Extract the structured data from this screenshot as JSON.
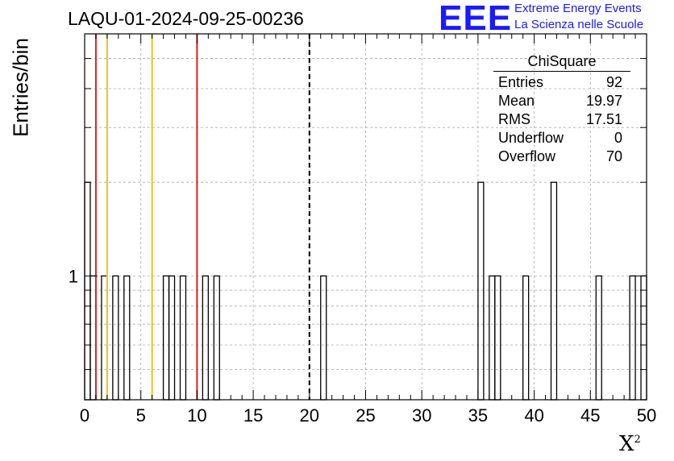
{
  "header": {
    "title": "LAQU-01-2024-09-25-00236",
    "logo_text": "EEE",
    "logo_line1": "Extreme Energy Events",
    "logo_line2": "La Scienza nelle Scuole"
  },
  "stats": {
    "name": "ChiSquare",
    "rows": [
      {
        "label": "Entries",
        "value": "92"
      },
      {
        "label": "Mean",
        "value": "19.97"
      },
      {
        "label": "RMS",
        "value": "17.51"
      },
      {
        "label": "Underflow",
        "value": "0"
      },
      {
        "label": "Overflow",
        "value": "70"
      }
    ]
  },
  "chart_data": {
    "type": "bar",
    "title": "LAQU-01-2024-09-25-00236",
    "xlabel": "X",
    "xlabel_superscript": "2",
    "ylabel": "Entries/bin",
    "xlim": [
      0,
      50
    ],
    "y_scale": "log",
    "ylim": [
      0.4,
      6
    ],
    "bin_width": 0.5,
    "x_ticks": [
      0,
      5,
      10,
      15,
      20,
      25,
      30,
      35,
      40,
      45,
      50
    ],
    "y_tick_labels": [
      1
    ],
    "grid": true,
    "bins": [
      {
        "x": 0.0,
        "count": 2
      },
      {
        "x": 0.5,
        "count": 1
      },
      {
        "x": 1.5,
        "count": 1
      },
      {
        "x": 2.5,
        "count": 1
      },
      {
        "x": 3.5,
        "count": 1
      },
      {
        "x": 7.0,
        "count": 1
      },
      {
        "x": 7.5,
        "count": 1
      },
      {
        "x": 8.5,
        "count": 1
      },
      {
        "x": 10.5,
        "count": 1
      },
      {
        "x": 11.5,
        "count": 1
      },
      {
        "x": 21.0,
        "count": 1
      },
      {
        "x": 35.0,
        "count": 2
      },
      {
        "x": 36.0,
        "count": 1
      },
      {
        "x": 36.5,
        "count": 1
      },
      {
        "x": 39.0,
        "count": 1
      },
      {
        "x": 41.5,
        "count": 2
      },
      {
        "x": 45.5,
        "count": 1
      },
      {
        "x": 48.5,
        "count": 1
      },
      {
        "x": 49.5,
        "count": 1
      }
    ],
    "vertical_lines": [
      {
        "x": 1,
        "color": "#e02020",
        "style": "solid"
      },
      {
        "x": 2,
        "color": "#f0c020",
        "style": "solid"
      },
      {
        "x": 6,
        "color": "#f0c020",
        "style": "solid"
      },
      {
        "x": 10,
        "color": "#e02020",
        "style": "solid"
      },
      {
        "x": 20,
        "color": "#000000",
        "style": "dashed"
      }
    ]
  }
}
